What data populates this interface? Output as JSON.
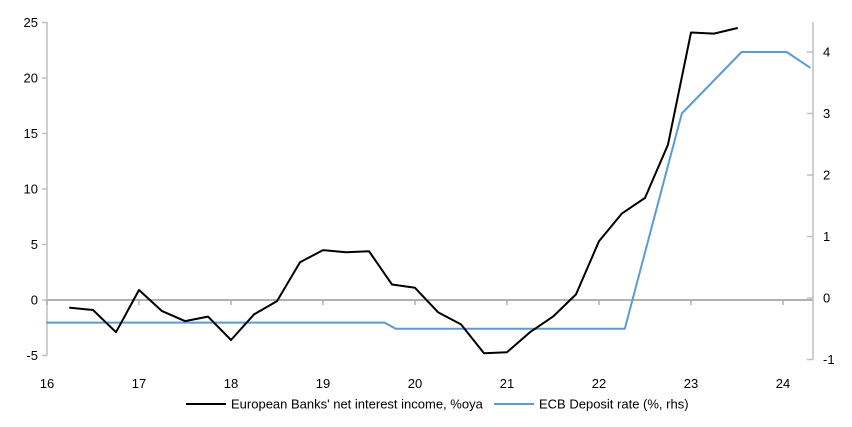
{
  "chart_data": {
    "type": "line",
    "title": "",
    "legend_position": "bottom-center",
    "grid": "zero-line-only",
    "colors": {
      "nii_line": "#000000",
      "ecb_line": "#5B9BD5",
      "zero_line": "#A6A6A6",
      "axis": "#BFBFBF",
      "tick_text": "#000000"
    },
    "x_axis": {
      "range": [
        16,
        24.33
      ],
      "tick_labels": [
        "16",
        "17",
        "18",
        "19",
        "20",
        "21",
        "22",
        "23",
        "24"
      ],
      "tick_values": [
        16,
        17,
        18,
        19,
        20,
        21,
        22,
        23,
        24
      ]
    },
    "left_axis": {
      "range": [
        -5,
        25
      ],
      "tick_values": [
        -5,
        0,
        5,
        10,
        15,
        20,
        25
      ],
      "tick_labels": [
        "-5",
        "0",
        "5",
        "10",
        "15",
        "20",
        "25"
      ]
    },
    "right_axis": {
      "range": [
        -1,
        4
      ],
      "tick_values": [
        -1,
        0,
        1,
        2,
        3,
        4
      ],
      "tick_labels": [
        "-1",
        "0",
        "1",
        "2",
        "3",
        "4"
      ]
    },
    "series": [
      {
        "name": "European Banks' net interest income, %oya",
        "axis": "left",
        "color_key": "nii_line",
        "points": [
          [
            16.25,
            -0.7
          ],
          [
            16.5,
            -0.9
          ],
          [
            16.75,
            -2.9
          ],
          [
            17.0,
            0.9
          ],
          [
            17.25,
            -1.0
          ],
          [
            17.5,
            -1.9
          ],
          [
            17.75,
            -1.5
          ],
          [
            18.0,
            -3.6
          ],
          [
            18.25,
            -1.3
          ],
          [
            18.5,
            -0.1
          ],
          [
            18.75,
            3.4
          ],
          [
            19.0,
            4.5
          ],
          [
            19.25,
            4.3
          ],
          [
            19.5,
            4.4
          ],
          [
            19.75,
            1.4
          ],
          [
            20.0,
            1.1
          ],
          [
            20.25,
            -1.1
          ],
          [
            20.5,
            -2.2
          ],
          [
            20.75,
            -4.8
          ],
          [
            21.0,
            -4.7
          ],
          [
            21.25,
            -2.9
          ],
          [
            21.5,
            -1.5
          ],
          [
            21.75,
            0.5
          ],
          [
            22.0,
            5.3
          ],
          [
            22.25,
            7.8
          ],
          [
            22.5,
            9.2
          ],
          [
            22.75,
            14.0
          ],
          [
            23.0,
            24.1
          ],
          [
            23.25,
            24.0
          ],
          [
            23.5,
            24.5
          ]
        ]
      },
      {
        "name": "ECB Deposit rate (%, rhs)",
        "axis": "right",
        "color_key": "ecb_line",
        "points": [
          [
            16.0,
            -0.4
          ],
          [
            19.67,
            -0.4
          ],
          [
            19.79,
            -0.5
          ],
          [
            22.28,
            -0.5
          ],
          [
            22.9,
            3.0
          ],
          [
            23.55,
            4.0
          ],
          [
            24.04,
            4.0
          ],
          [
            24.29,
            3.75
          ]
        ]
      }
    ],
    "legend": [
      {
        "label": "European Banks' net interest income, %oya",
        "color_key": "nii_line"
      },
      {
        "label": "ECB Deposit rate (%, rhs)",
        "color_key": "ecb_line"
      }
    ]
  }
}
